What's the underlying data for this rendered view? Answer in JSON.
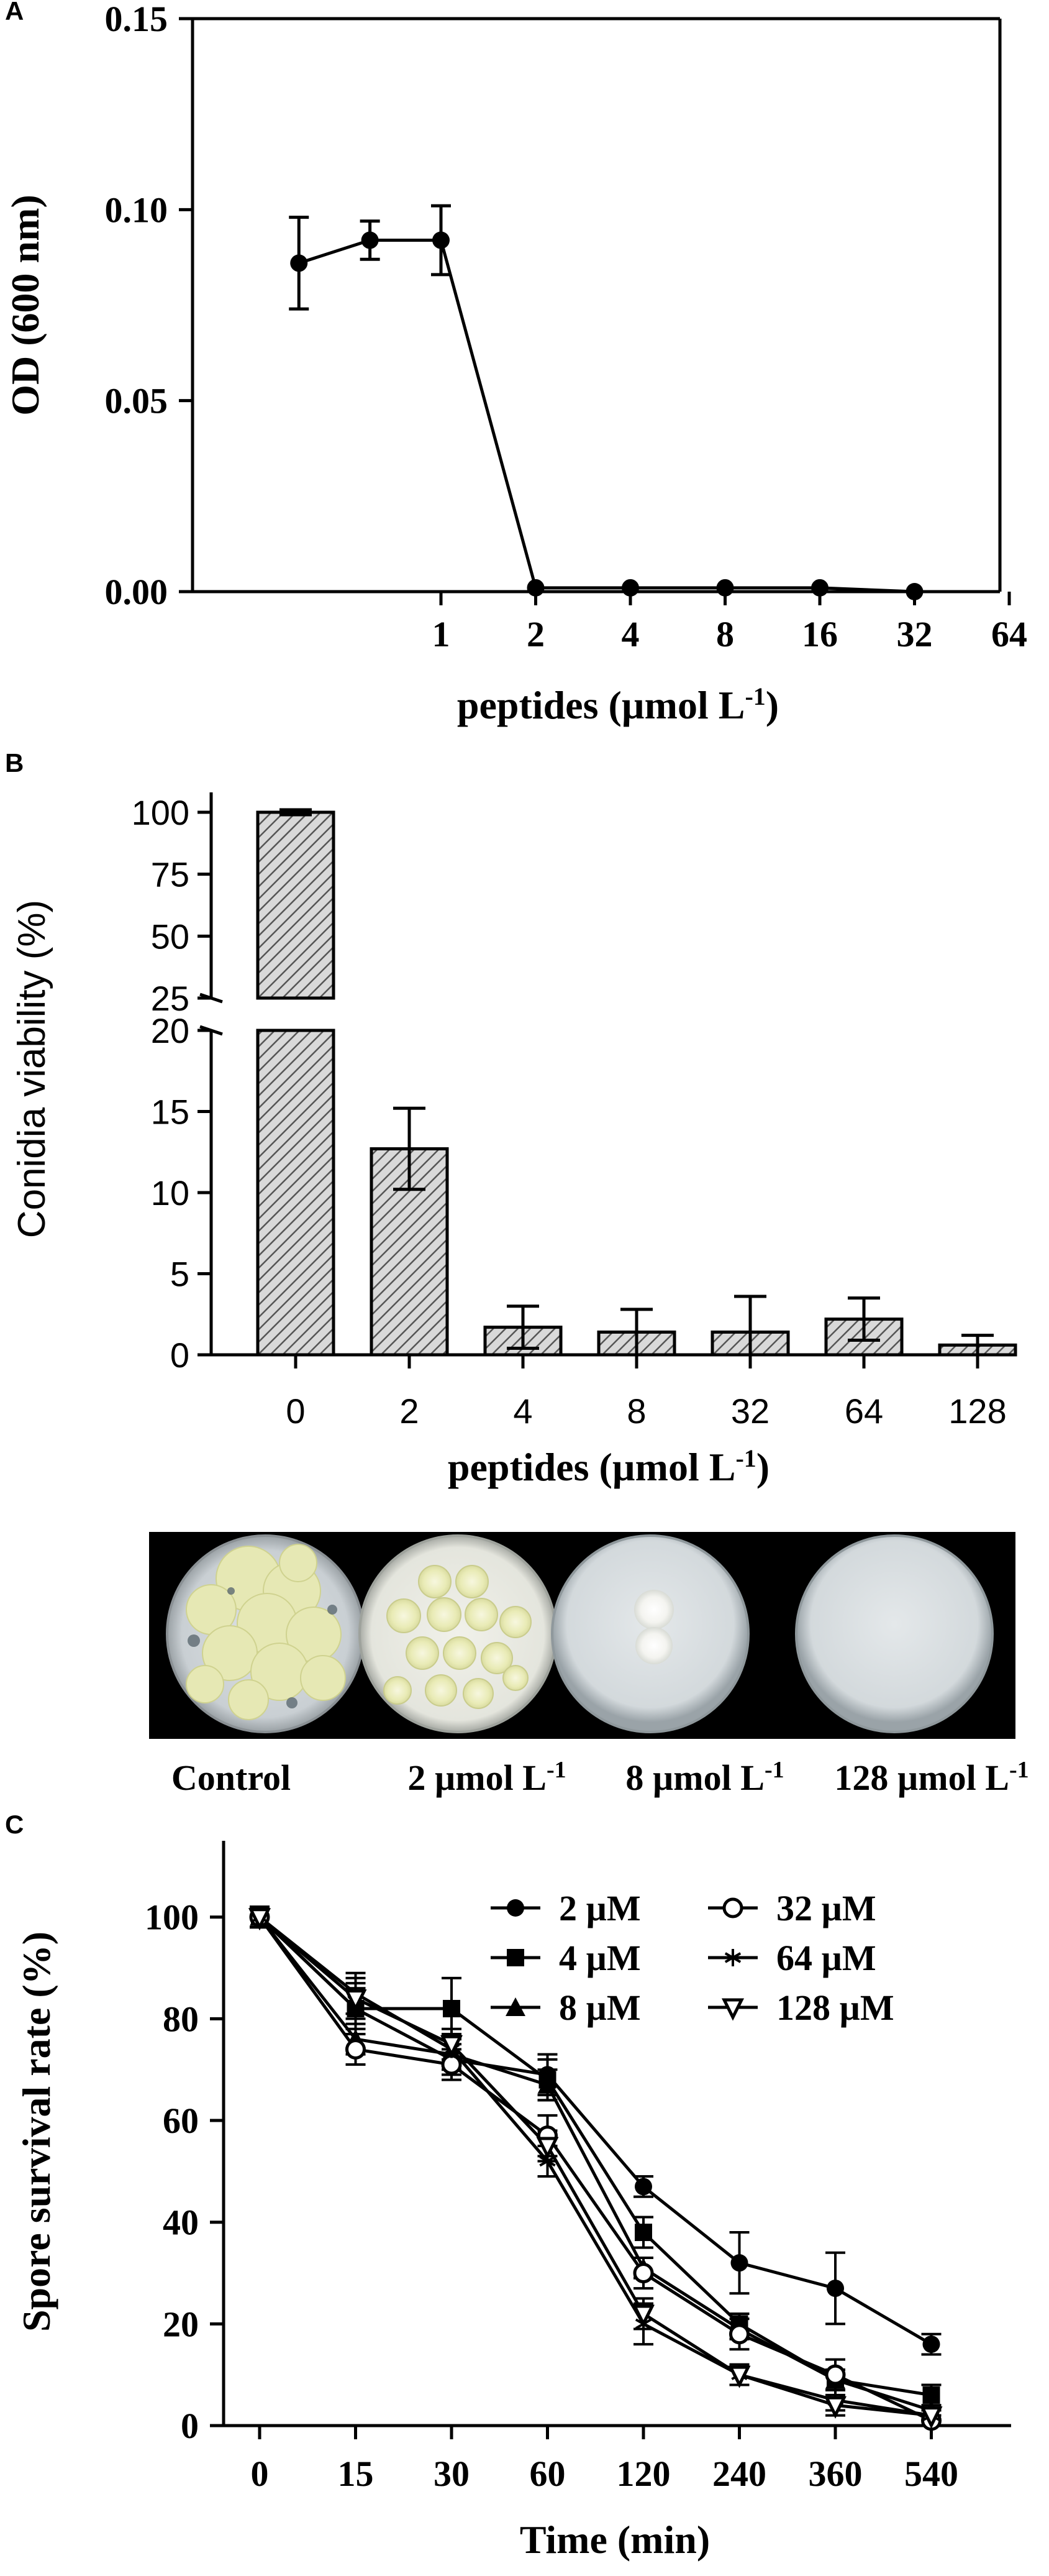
{
  "panels": {
    "a": "A",
    "b": "B",
    "c": "C"
  },
  "chart_data": [
    {
      "panel": "A",
      "type": "line",
      "xlabel": "peptides (µmol L",
      "xlabel_sup": "-1",
      "xlabel_close": ")",
      "ylabel": "OD (600 nm)",
      "categories": [
        "1",
        "2",
        "4",
        "8",
        "16",
        "32",
        "64"
      ],
      "yticks": [
        "0.00",
        "0.05",
        "0.10",
        "0.15"
      ],
      "ylim": [
        0,
        0.15
      ],
      "series": [
        {
          "x": [
            -1.5,
            -0.75,
            0,
            1,
            2,
            3,
            4,
            5
          ],
          "values": [
            0.086,
            0.092,
            0.092,
            0.001,
            0.001,
            0.001,
            0.001,
            0.0
          ],
          "err": [
            0.012,
            0.005,
            0.009,
            0,
            0,
            0,
            0,
            0
          ]
        }
      ]
    },
    {
      "panel": "B",
      "type": "bar",
      "xlabel": "peptides  (µmol L",
      "xlabel_sup": "-1",
      "xlabel_close": ")",
      "ylabel": "Conidia viability (%)",
      "categories": [
        "0",
        "2",
        "4",
        "8",
        "32",
        "64",
        "128"
      ],
      "values": [
        100,
        12.7,
        1.7,
        1.4,
        1.4,
        2.2,
        0.6
      ],
      "err": [
        1.0,
        2.5,
        1.3,
        1.4,
        2.2,
        1.3,
        0.6
      ],
      "yticks_lower": [
        "0",
        "5",
        "10",
        "15",
        "20"
      ],
      "yticks_upper": [
        "25",
        "50",
        "75",
        "100"
      ],
      "y_break": [
        20,
        25
      ]
    },
    {
      "panel": "C",
      "type": "line",
      "xlabel": "Time (min)",
      "ylabel": "Spore survival rate (%)",
      "categories": [
        "0",
        "15",
        "30",
        "60",
        "120",
        "240",
        "360",
        "540"
      ],
      "yticks": [
        "0",
        "20",
        "40",
        "60",
        "80",
        "100"
      ],
      "ylim": [
        0,
        115
      ],
      "series": [
        {
          "name": "2  µM",
          "marker": "filled-circle",
          "values": [
            100,
            82,
            72,
            69,
            47,
            32,
            27,
            16
          ],
          "err": [
            2,
            5,
            3,
            4,
            2,
            6,
            7,
            2
          ]
        },
        {
          "name": "4  µM",
          "marker": "filled-square",
          "values": [
            100,
            82,
            82,
            68,
            38,
            20,
            9,
            6
          ],
          "err": [
            2,
            4,
            6,
            4,
            3,
            2,
            2,
            2
          ]
        },
        {
          "name": "8  µM",
          "marker": "filled-triangle",
          "values": [
            100,
            76,
            73,
            67,
            31,
            19,
            9,
            3
          ],
          "err": [
            2,
            3,
            3,
            3,
            2,
            2,
            2,
            1
          ]
        },
        {
          "name": "32  µM",
          "marker": "open-circle",
          "values": [
            100,
            74,
            71,
            57,
            30,
            18,
            10,
            1
          ],
          "err": [
            2,
            3,
            3,
            4,
            3,
            3,
            3,
            1
          ]
        },
        {
          "name": "64  µM",
          "marker": "star",
          "values": [
            100,
            85,
            74,
            52,
            20,
            10,
            5,
            2
          ],
          "err": [
            2,
            4,
            3,
            3,
            4,
            2,
            2,
            1
          ]
        },
        {
          "name": "128  µM",
          "marker": "open-triangle-down",
          "values": [
            100,
            84,
            75,
            55,
            22,
            10,
            4,
            2
          ],
          "err": [
            2,
            4,
            3,
            3,
            3,
            2,
            2,
            1
          ]
        }
      ]
    }
  ],
  "photo": {
    "labels": [
      "Control",
      "2 µmol L",
      "8 µmol L",
      "128 µmol L"
    ],
    "label_sups": [
      "",
      "-1",
      "-1",
      "-1"
    ]
  }
}
